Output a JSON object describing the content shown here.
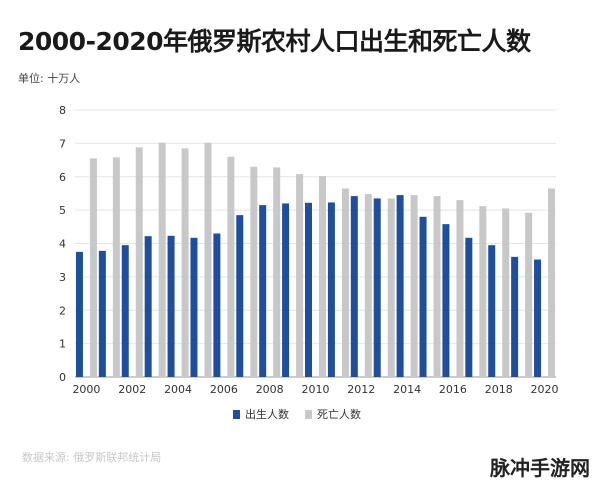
{
  "title": "2000-2020年俄罗斯农村人口出生和死亡人数",
  "unit_label": "单位: 十万人",
  "source": "数据来源: 俄罗斯联邦统计局",
  "watermark": "脉冲手游网",
  "chart_data": {
    "type": "bar",
    "categories": [
      "2000",
      "2001",
      "2002",
      "2003",
      "2004",
      "2005",
      "2006",
      "2007",
      "2008",
      "2009",
      "2010",
      "2011",
      "2012",
      "2013",
      "2014",
      "2015",
      "2016",
      "2017",
      "2018",
      "2019",
      "2020"
    ],
    "x_tick_labels": [
      "2000",
      "2002",
      "2004",
      "2006",
      "2008",
      "2010",
      "2012",
      "2014",
      "2016",
      "2018",
      "2020"
    ],
    "series": [
      {
        "name": "出生人数",
        "color": "#1f4e9c",
        "values": [
          3.75,
          3.78,
          3.95,
          4.22,
          4.23,
          4.17,
          4.3,
          4.85,
          5.15,
          5.2,
          5.22,
          5.23,
          5.42,
          5.35,
          5.45,
          4.8,
          4.58,
          4.17,
          3.95,
          3.6,
          3.52
        ]
      },
      {
        "name": "死亡人数",
        "color": "#c8c8c8",
        "values": [
          6.55,
          6.58,
          6.88,
          7.02,
          6.85,
          7.02,
          6.6,
          6.3,
          6.28,
          6.08,
          6.02,
          5.65,
          5.48,
          5.35,
          5.45,
          5.42,
          5.3,
          5.12,
          5.05,
          4.92,
          5.65
        ]
      }
    ],
    "ylim": [
      0,
      8
    ],
    "y_ticks": [
      0,
      1,
      2,
      3,
      4,
      5,
      6,
      7,
      8
    ],
    "grid": true,
    "legend_position": "bottom-center"
  }
}
